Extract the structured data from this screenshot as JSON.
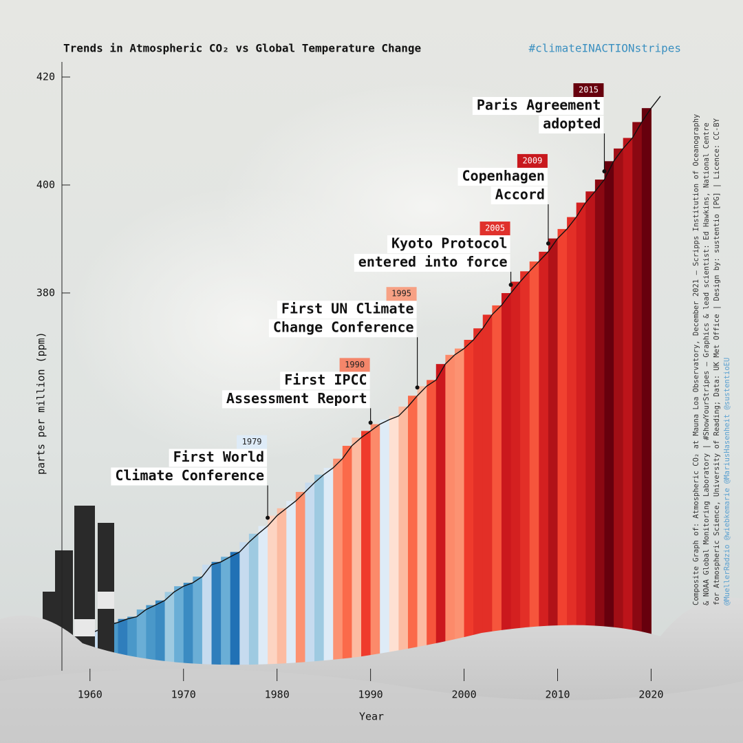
{
  "chart_data": {
    "type": "line",
    "title": "Trends in Atmospheric CO₂ vs Global Temperature Change",
    "hashtag": "#climateINACTIONstripes",
    "y_label": "parts per million (ppm)",
    "x_label": "Year",
    "x": [
      1959,
      1960,
      1961,
      1962,
      1963,
      1964,
      1965,
      1966,
      1967,
      1968,
      1969,
      1970,
      1971,
      1972,
      1973,
      1974,
      1975,
      1976,
      1977,
      1978,
      1979,
      1980,
      1981,
      1982,
      1983,
      1984,
      1985,
      1986,
      1987,
      1988,
      1989,
      1990,
      1991,
      1992,
      1993,
      1994,
      1995,
      1996,
      1997,
      1998,
      1999,
      2000,
      2001,
      2002,
      2003,
      2004,
      2005,
      2006,
      2007,
      2008,
      2009,
      2010,
      2011,
      2012,
      2013,
      2014,
      2015,
      2016,
      2017,
      2018,
      2019,
      2020,
      2021
    ],
    "values": [
      315.98,
      316.91,
      317.64,
      318.45,
      318.99,
      319.62,
      320.04,
      321.37,
      322.18,
      323.05,
      324.62,
      325.68,
      326.32,
      327.46,
      329.68,
      330.19,
      331.13,
      332.03,
      333.84,
      335.41,
      336.84,
      338.76,
      340.12,
      341.48,
      343.15,
      344.87,
      346.35,
      347.61,
      349.31,
      351.69,
      353.2,
      354.45,
      355.7,
      356.54,
      357.21,
      358.96,
      360.97,
      362.74,
      363.88,
      366.84,
      368.54,
      369.71,
      371.32,
      373.45,
      375.98,
      377.7,
      379.98,
      382.09,
      384.02,
      385.83,
      387.64,
      390.1,
      391.85,
      394.06,
      396.74,
      398.81,
      401.01,
      404.41,
      406.76,
      408.72,
      411.66,
      414.24,
      416.45
    ],
    "color": "#111111",
    "stripes": {
      "x": [
        1961,
        1962,
        1963,
        1964,
        1965,
        1966,
        1967,
        1968,
        1969,
        1970,
        1971,
        1972,
        1973,
        1974,
        1975,
        1976,
        1977,
        1978,
        1979,
        1980,
        1981,
        1982,
        1983,
        1984,
        1985,
        1986,
        1987,
        1988,
        1989,
        1990,
        1991,
        1992,
        1993,
        1994,
        1995,
        1996,
        1997,
        1998,
        1999,
        2000,
        2001,
        2002,
        2003,
        2004,
        2005,
        2006,
        2007,
        2008,
        2009,
        2010,
        2011,
        2012,
        2013,
        2014,
        2015,
        2016,
        2017,
        2018,
        2019,
        2020
      ],
      "colors": [
        "#c6dbef",
        "#6aaed6",
        "#4a98c9",
        "#2f7ebc",
        "#4a98c9",
        "#6aaed6",
        "#4a98c9",
        "#3b8bc2",
        "#9ecae1",
        "#6aaed6",
        "#3b8bc2",
        "#6aaed6",
        "#c6dbef",
        "#2f7ebc",
        "#6aaed6",
        "#2171b5",
        "#c6dbef",
        "#9ecae1",
        "#deebf7",
        "#fdd4c2",
        "#fcbba1",
        "#deebf7",
        "#fc9272",
        "#c6dbef",
        "#9ecae1",
        "#deebf7",
        "#fc9272",
        "#fb6a4a",
        "#fcbba1",
        "#ef3b2c",
        "#fc8a6a",
        "#deebf7",
        "#fee0d2",
        "#fcbba1",
        "#fb6a4a",
        "#fcbba1",
        "#f6553c",
        "#cb181d",
        "#fc8a6a",
        "#fc9272",
        "#ef3b2c",
        "#e32f27",
        "#e32f27",
        "#f6553c",
        "#cb181d",
        "#d42020",
        "#e32f27",
        "#f6553c",
        "#d42020",
        "#b11218",
        "#f14130",
        "#e32f27",
        "#d42020",
        "#bc141a",
        "#8a0812",
        "#67000d",
        "#a10e15",
        "#bc141a",
        "#8a0812",
        "#67000d"
      ]
    },
    "annotations": [
      {
        "year": 1979,
        "lines": [
          "First World",
          "Climate Conference"
        ],
        "color": "#deebf7"
      },
      {
        "year": 1990,
        "lines": [
          "First IPCC",
          "Assessment Report"
        ],
        "color": "#f4866a"
      },
      {
        "year": 1995,
        "lines": [
          "First UN Climate",
          "Change Conference"
        ],
        "color": "#f7a184"
      },
      {
        "year": 2005,
        "lines": [
          "Kyoto Protocol",
          "entered into force"
        ],
        "color": "#e0312c"
      },
      {
        "year": 2009,
        "lines": [
          "Copenhagen",
          "Accord"
        ],
        "color": "#c8181d"
      },
      {
        "year": 2015,
        "lines": [
          "Paris Agreement",
          "adopted"
        ],
        "color": "#67000d"
      }
    ],
    "xlim": [
      1957,
      2022.1
    ],
    "ylim": [
      311.3,
      422.8
    ],
    "xticks": [
      1960,
      1970,
      1980,
      1990,
      2000,
      2010,
      2020
    ],
    "yticks": [
      380,
      400,
      420
    ],
    "credits": [
      "Composite Graph of: Atmospheric CO₂ at Mauna Loa Observatory, December 2021 – Scripps Institution of Oceanography",
      "& NOAA Global Monitoring Laboratory | #ShowYourStripes – Graphics & lead scientist: Ed Hawkins, National Centre",
      "for Atmospheric Science, University of Reading; Data: UK Met Office | Design by: sustentio [PG] | Licence: CC-BY",
      "@MuellerRadzio @wiebkemarie @MariusHasenheit @sustentioEU"
    ]
  }
}
